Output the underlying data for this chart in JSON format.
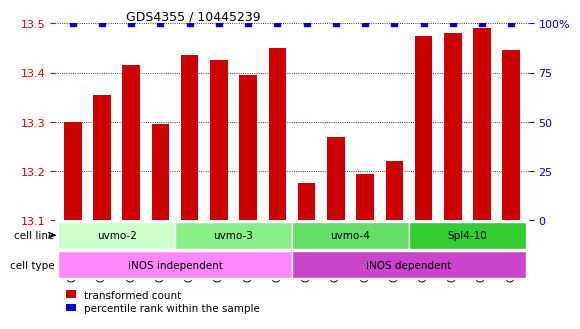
{
  "title": "GDS4355 / 10445239",
  "samples": [
    "GSM796425",
    "GSM796426",
    "GSM796427",
    "GSM796428",
    "GSM796429",
    "GSM796430",
    "GSM796431",
    "GSM796432",
    "GSM796417",
    "GSM796418",
    "GSM796419",
    "GSM796420",
    "GSM796421",
    "GSM796422",
    "GSM796423",
    "GSM796424"
  ],
  "transformed_count": [
    13.3,
    13.355,
    13.415,
    13.295,
    13.435,
    13.425,
    13.395,
    13.45,
    13.175,
    13.27,
    13.195,
    13.22,
    13.475,
    13.48,
    13.49,
    13.445
  ],
  "percentile": [
    100,
    100,
    100,
    100,
    100,
    100,
    100,
    100,
    100,
    100,
    100,
    100,
    100,
    100,
    100,
    100
  ],
  "ylim_left": [
    13.1,
    13.5
  ],
  "ylim_right": [
    0,
    100
  ],
  "yticks_left": [
    13.1,
    13.2,
    13.3,
    13.4,
    13.5
  ],
  "yticks_right": [
    0,
    25,
    50,
    75,
    100
  ],
  "bar_color": "#cc0000",
  "percentile_color": "#0000cc",
  "grid_color": "#000000",
  "cell_lines": [
    {
      "label": "uvmo-2",
      "start": 0,
      "end": 3,
      "color": "#ccffcc"
    },
    {
      "label": "uvmo-3",
      "start": 4,
      "end": 7,
      "color": "#99ee99"
    },
    {
      "label": "uvmo-4",
      "start": 8,
      "end": 11,
      "color": "#66dd66"
    },
    {
      "label": "Spl4-10",
      "start": 12,
      "end": 15,
      "color": "#33cc33"
    }
  ],
  "cell_types": [
    {
      "label": "iNOS independent",
      "start": 0,
      "end": 7,
      "color": "#ff99ff"
    },
    {
      "label": "iNOS dependent",
      "start": 8,
      "end": 15,
      "color": "#cc66cc"
    }
  ],
  "legend_items": [
    {
      "label": "transformed count",
      "color": "#cc0000"
    },
    {
      "label": "percentile rank within the sample",
      "color": "#0000cc"
    }
  ],
  "background_color": "#ffffff",
  "tick_label_fontsize": 7,
  "bar_width": 0.6
}
